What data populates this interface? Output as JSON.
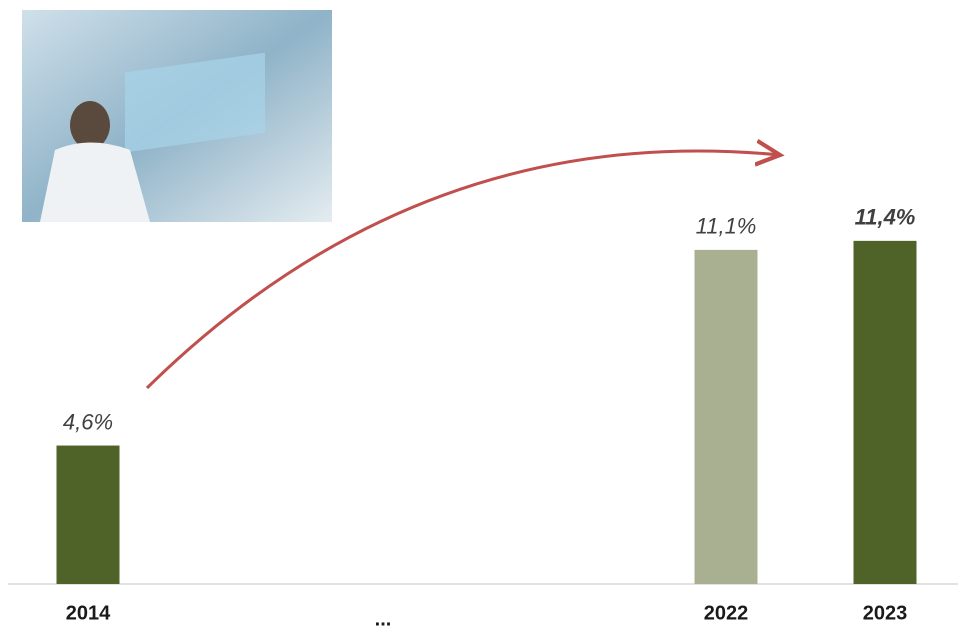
{
  "chart_data": {
    "type": "bar",
    "categories": [
      "2014",
      "...",
      "2022",
      "2023"
    ],
    "values": [
      4.6,
      null,
      11.1,
      11.4
    ],
    "value_labels": [
      "4,6%",
      null,
      "11,1%",
      "11,4%"
    ],
    "colors": [
      "#4f6228",
      null,
      "#a9b092",
      "#4f6228"
    ]
  }
}
